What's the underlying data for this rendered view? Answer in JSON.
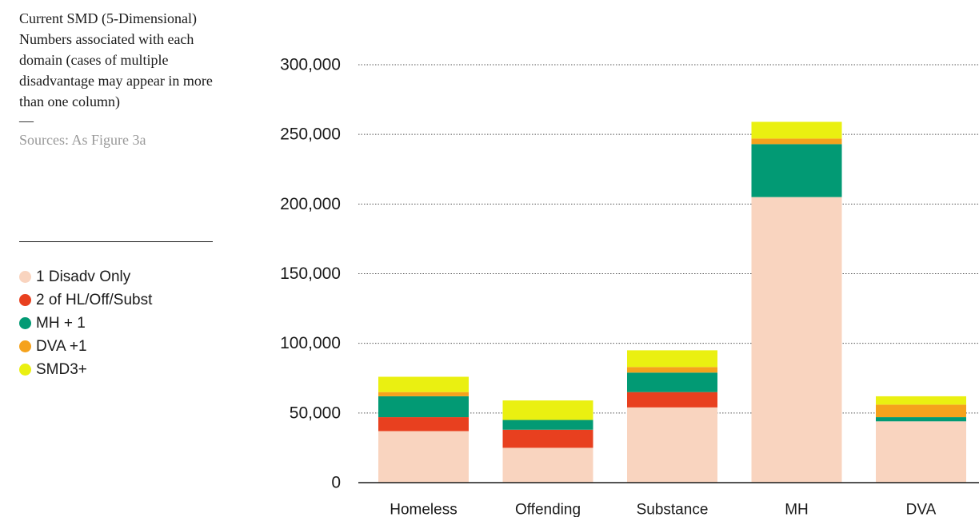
{
  "caption": {
    "text": "Current SMD (5-Dimensional) Numbers associated with each domain (cases of multiple disadvantage may appear in more than one column)",
    "dash": "—",
    "source": "Sources: As Figure 3a"
  },
  "colors": {
    "1 Disadv Only": "#f9d4bf",
    "2 of HL/Off/Subst": "#e8401f",
    "MH + 1": "#029a74",
    "DVA +1": "#f5a21c",
    "SMD3+": "#eaf011",
    "grid": "#555555",
    "axis": "#1a1a1a"
  },
  "chart_data": {
    "type": "bar",
    "stacked": true,
    "categories": [
      "Homeless",
      "Offending",
      "Substance",
      "MH",
      "DVA"
    ],
    "series": [
      {
        "name": "1 Disadv Only",
        "values": [
          37000,
          25000,
          54000,
          205000,
          44000
        ]
      },
      {
        "name": "2 of HL/Off/Subst",
        "values": [
          10000,
          13000,
          11000,
          0,
          0
        ]
      },
      {
        "name": "MH + 1",
        "values": [
          15000,
          7000,
          14000,
          38000,
          3000
        ]
      },
      {
        "name": "DVA +1",
        "values": [
          3000,
          0,
          4000,
          4000,
          9000
        ]
      },
      {
        "name": "SMD3+",
        "values": [
          11000,
          14000,
          12000,
          12000,
          6000
        ]
      }
    ],
    "yticks": [
      0,
      50000,
      100000,
      150000,
      200000,
      250000,
      300000
    ],
    "ytick_labels": [
      "0",
      "50,000",
      "100,000",
      "150,000",
      "200,000",
      "250,000",
      "300,000"
    ],
    "ylim": [
      0,
      300000
    ],
    "grid": true,
    "legend_position": "left"
  }
}
